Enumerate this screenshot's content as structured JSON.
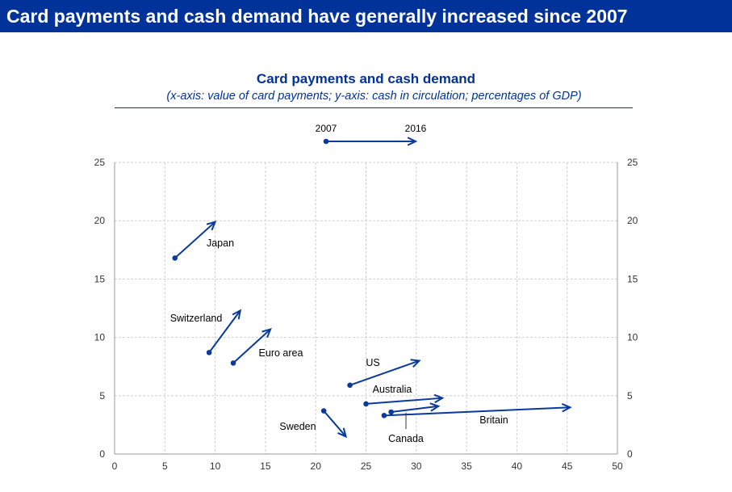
{
  "header": {
    "title": "Card payments and cash demand have generally increased since 2007"
  },
  "chart_data": {
    "type": "arrow-scatter",
    "title": "Card payments and cash demand",
    "subtitle": "(x-axis: value of card payments; y-axis: cash in circulation; percentages of GDP)",
    "legend": {
      "start": "2007",
      "end": "2016",
      "placement": "top-center"
    },
    "xlim": [
      0,
      50
    ],
    "ylim": [
      0,
      25
    ],
    "xticks": [
      "0",
      "5",
      "10",
      "15",
      "20",
      "25",
      "30",
      "35",
      "40",
      "45",
      "50"
    ],
    "yticks": [
      "0",
      "5",
      "10",
      "15",
      "20",
      "25"
    ],
    "grid": true,
    "color": "#0a3a9a",
    "series": [
      {
        "name": "Japan",
        "start": [
          6.0,
          16.8
        ],
        "end": [
          10.0,
          19.9
        ]
      },
      {
        "name": "Switzerland",
        "start": [
          9.4,
          8.7
        ],
        "end": [
          12.5,
          12.3
        ]
      },
      {
        "name": "Euro area",
        "start": [
          11.8,
          7.8
        ],
        "end": [
          15.5,
          10.7
        ]
      },
      {
        "name": "US",
        "start": [
          23.4,
          5.9
        ],
        "end": [
          30.3,
          8.0
        ]
      },
      {
        "name": "Australia",
        "start": [
          25.0,
          4.3
        ],
        "end": [
          32.6,
          4.8
        ]
      },
      {
        "name": "Canada",
        "start": [
          27.5,
          3.6
        ],
        "end": [
          32.2,
          4.1
        ]
      },
      {
        "name": "Britain",
        "start": [
          26.8,
          3.3
        ],
        "end": [
          45.3,
          4.0
        ]
      },
      {
        "name": "Sweden",
        "start": [
          20.8,
          3.7
        ],
        "end": [
          23.0,
          1.5
        ]
      }
    ]
  }
}
